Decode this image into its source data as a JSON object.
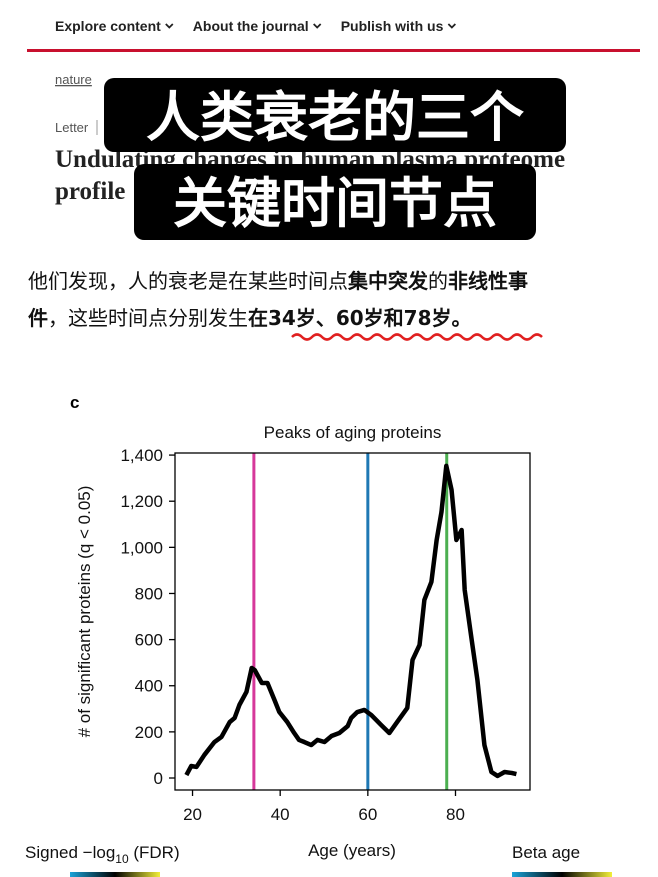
{
  "nav": [
    "Explore content",
    "About the journal",
    "Publish with us"
  ],
  "breadcrumb": "nature",
  "article_type": "Letter",
  "article_title": [
    "Undulating changes in human plasma proteome",
    "profile"
  ],
  "overlay": [
    "人类衰老的三个",
    "关键时间节点"
  ],
  "paragraph": [
    [
      {
        "text": "他们发现，人的衰老是在某些时间点",
        "bold": false
      },
      {
        "text": "集中突发",
        "bold": true
      },
      {
        "text": "的",
        "bold": false
      },
      {
        "text": "非线性事",
        "bold": true
      }
    ],
    [
      {
        "text": "件",
        "bold": true
      },
      {
        "text": "，这些时间点分别发生",
        "bold": false
      },
      {
        "text": "在34岁、60岁和78岁。",
        "bold": true
      }
    ]
  ],
  "chart_data": {
    "type": "line",
    "panel_label": "c",
    "title": "Peaks of aging proteins",
    "x_label": "Age (years)",
    "y_label": "# of significant proteins (q < 0.05)",
    "x": [
      18.6,
      19.7,
      20.9,
      22.7,
      25,
      26.6,
      28.5,
      29.6,
      30.7,
      32.3,
      33.5,
      34.2,
      35.8,
      37.1,
      38.7,
      39.8,
      41.6,
      43.2,
      44.3,
      45.5,
      47.1,
      48.5,
      50.1,
      51.7,
      53.5,
      55.4,
      56.2,
      57.6,
      59.2,
      60.8,
      62.6,
      64.9,
      66.7,
      69,
      70.2,
      71.8,
      72.9,
      74.5,
      75.7,
      76.8,
      77.9,
      79.1,
      80.2,
      81.4,
      82.1,
      83.7,
      85,
      86.6,
      88.2,
      89.6,
      91.2,
      92.8,
      93.9
    ],
    "series": [
      {
        "color": "#000000",
        "values": [
          13,
          52,
          48,
          100,
          156,
          178,
          243,
          260,
          317,
          373,
          477,
          468,
          412,
          412,
          338,
          286,
          243,
          195,
          165,
          156,
          143,
          165,
          156,
          182,
          195,
          225,
          260,
          286,
          295,
          273,
          238,
          195,
          243,
          304,
          512,
          577,
          772,
          850,
          1032,
          1153,
          1353,
          1249,
          1032,
          1075,
          815,
          598,
          425,
          143,
          26,
          9,
          26,
          22,
          17
        ]
      }
    ],
    "vlines": [
      {
        "value": 34,
        "color": "#d6389a"
      },
      {
        "value": 60,
        "color": "#1f78b4"
      },
      {
        "value": 78,
        "color": "#4caf50"
      }
    ],
    "xlim": [
      16,
      97
    ],
    "ylim": [
      -52,
      1409
    ],
    "xticks": [
      20,
      40,
      60,
      80
    ],
    "yticks": [
      0,
      200,
      400,
      600,
      800,
      {
        "value": 1000,
        "label": "1,000"
      },
      {
        "value": 1200,
        "label": "1,200"
      },
      {
        "value": 1400,
        "label": "1,400"
      }
    ],
    "colorbar_labels": [
      {
        "pre": "Signed −log",
        "sub": "10",
        "post": " (FDR)"
      },
      {
        "pre": "Beta age"
      }
    ]
  }
}
